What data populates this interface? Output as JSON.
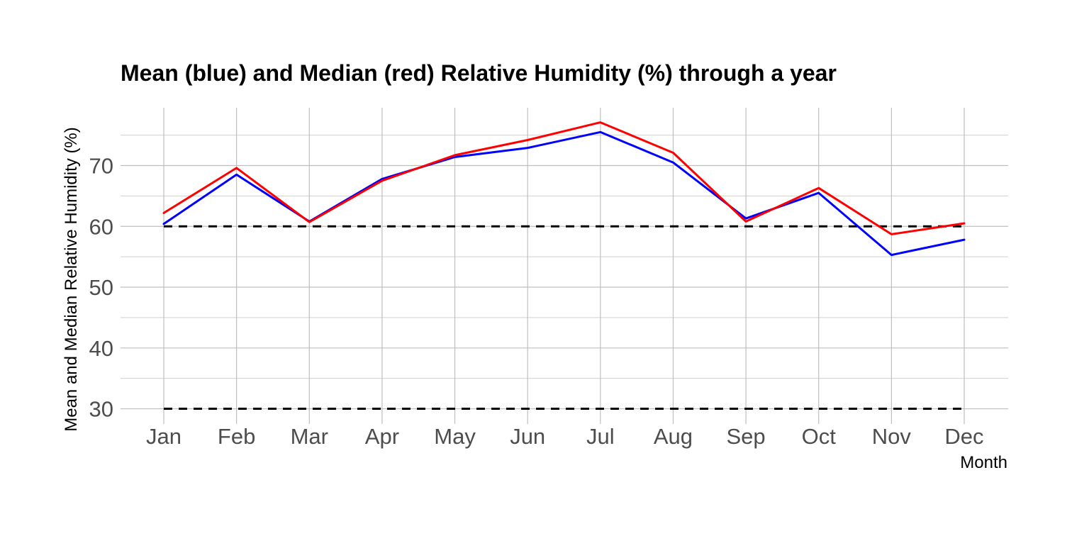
{
  "chart_data": {
    "type": "line",
    "title": "Mean (blue) and Median (red) Relative Humidity (%) through a year",
    "xlabel": "Month",
    "ylabel": "Mean and Median Relative Humidity (%)",
    "categories": [
      "Jan",
      "Feb",
      "Mar",
      "Apr",
      "May",
      "Jun",
      "Jul",
      "Aug",
      "Sep",
      "Oct",
      "Nov",
      "Dec"
    ],
    "yticks": [
      30,
      40,
      50,
      60,
      70
    ],
    "ylim": [
      27.5,
      79.5
    ],
    "grid": true,
    "series": [
      {
        "color": "#0000ff",
        "values": [
          60.4,
          68.5,
          60.8,
          67.8,
          71.4,
          72.9,
          75.5,
          70.5,
          61.3,
          65.5,
          55.3,
          57.8
        ]
      },
      {
        "color": "#ff0000",
        "values": [
          62.2,
          69.6,
          60.7,
          67.5,
          71.7,
          74.2,
          77.1,
          72.1,
          60.8,
          66.3,
          58.7,
          60.5
        ]
      }
    ],
    "reference_lines": [
      {
        "y": 60,
        "style": "dashed",
        "color": "#000000"
      },
      {
        "y": 30,
        "style": "dashed",
        "color": "#000000"
      }
    ]
  }
}
